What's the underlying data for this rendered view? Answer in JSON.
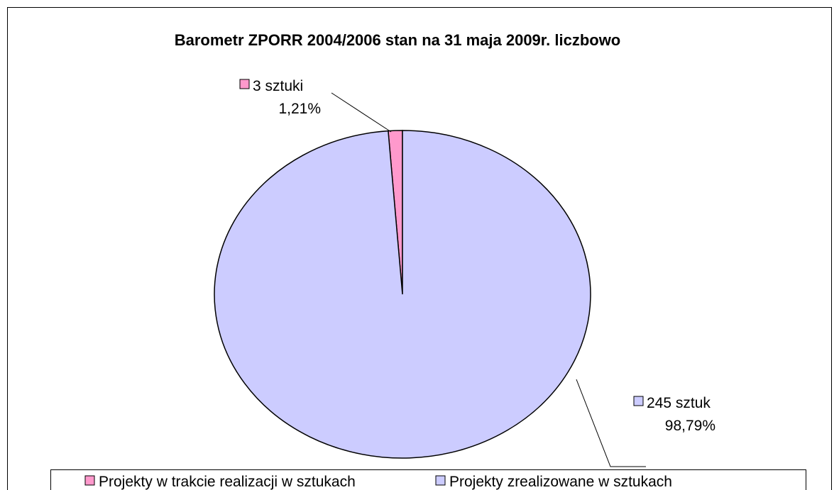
{
  "chart_data": {
    "type": "pie",
    "title": "Barometr ZPORR 2004/2006 stan na 31 maja 2009r. liczbowo",
    "categories": [
      "Projekty w trakcie realizacji w sztukach",
      "Projekty zrealizowane w sztukach"
    ],
    "values": [
      3,
      245
    ],
    "value_labels": [
      "3 sztuki",
      "245 sztuk"
    ],
    "percent_labels": [
      "1,21%",
      "98,79%"
    ],
    "colors": [
      "#ff99cc",
      "#ccccff"
    ],
    "legend": "bottom"
  }
}
